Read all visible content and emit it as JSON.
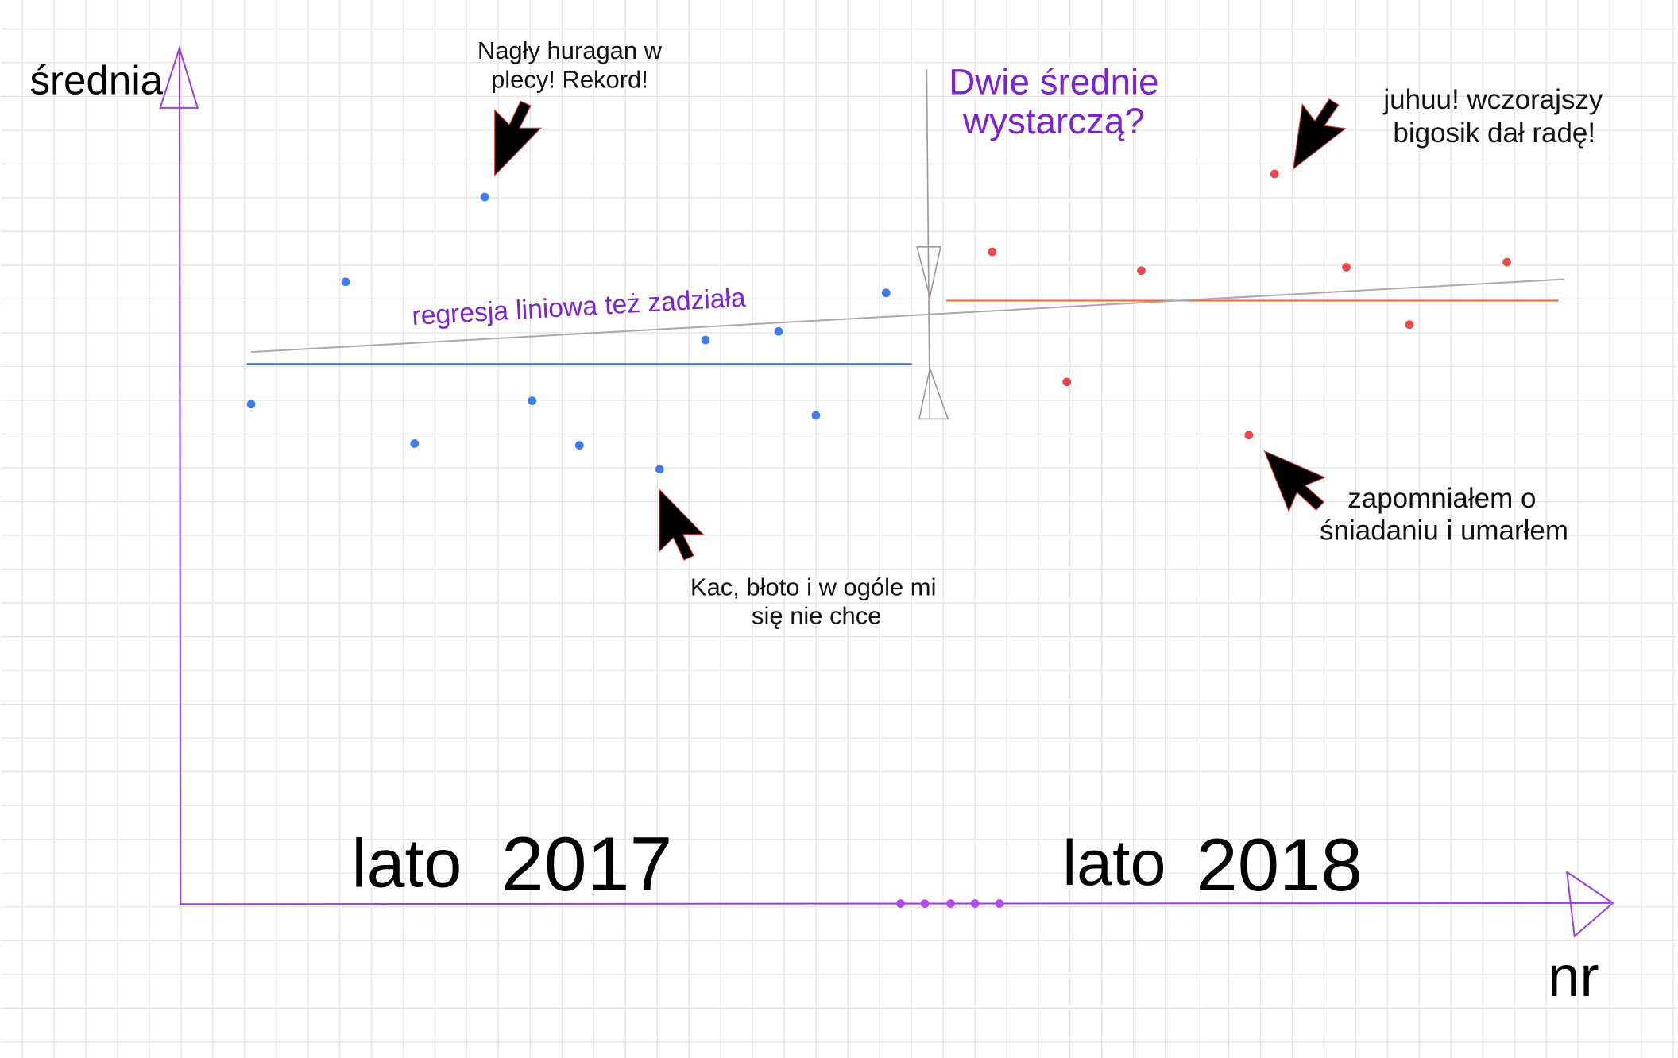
{
  "colors": {
    "axis": "#9a3cf0",
    "blue": "#3b7cf0",
    "red": "#f04848",
    "mean_blue": "#2f6fe8",
    "mean_orange": "#f4682a",
    "regression": "#aaaaaa",
    "purple_text": "#7b22d8",
    "grid": "#e4e4e4"
  },
  "chart_data": {
    "type": "scatter",
    "title": "",
    "xlabel": "nr",
    "ylabel": "średnia",
    "xlim": [
      0,
      100
    ],
    "ylim": [
      0,
      100
    ],
    "grid": true,
    "period_labels": [
      {
        "word": "lato",
        "year": "2017"
      },
      {
        "word": "lato",
        "year": "2018"
      }
    ],
    "series": [
      {
        "name": "lato 2017",
        "color": "#3b7cf0",
        "points": [
          [
            5.0,
            58.4
          ],
          [
            11.6,
            72.7
          ],
          [
            16.4,
            53.8
          ],
          [
            21.3,
            82.6
          ],
          [
            24.6,
            58.8
          ],
          [
            27.9,
            53.6
          ],
          [
            33.5,
            50.8
          ],
          [
            36.7,
            65.9
          ],
          [
            41.8,
            66.9
          ],
          [
            44.4,
            57.1
          ],
          [
            49.3,
            71.4
          ]
        ]
      },
      {
        "name": "lato 2018",
        "color": "#f04848",
        "points": [
          [
            56.7,
            76.2
          ],
          [
            61.9,
            61.0
          ],
          [
            67.1,
            74.0
          ],
          [
            74.6,
            54.8
          ],
          [
            76.4,
            85.3
          ],
          [
            81.4,
            74.4
          ],
          [
            85.8,
            67.7
          ],
          [
            92.6,
            75.0
          ]
        ]
      }
    ],
    "mean_lines": [
      {
        "name": "średnia 2017",
        "color": "#2f6fe8",
        "y": 63.1,
        "x": [
          4.7,
          51.1
        ]
      },
      {
        "name": "średnia 2018",
        "color": "#f4682a",
        "y": 70.5,
        "x": [
          53.5,
          96.2
        ]
      }
    ],
    "regression_line": {
      "color": "#aaaaaa",
      "from": [
        5.0,
        64.5
      ],
      "to": [
        96.6,
        73.0
      ]
    },
    "axis_gap_dots": [
      50.3,
      52.0,
      53.8,
      55.5,
      57.2
    ],
    "annotations": {
      "title_question": [
        "Dwie średnie",
        "wystarczą?"
      ],
      "regression_note": "regresja liniowa też zadziała",
      "record": [
        "Nagły huragan w",
        "plecy! Rekord!"
      ],
      "hangover": [
        "Kac, błoto i w ogóle mi",
        "się nie chce"
      ],
      "bigos": [
        "juhuu! wczorajszy",
        "bigosik dał radę!"
      ],
      "breakfast": [
        "zapomniałem o",
        "śniadaniu i umarłem"
      ]
    }
  }
}
